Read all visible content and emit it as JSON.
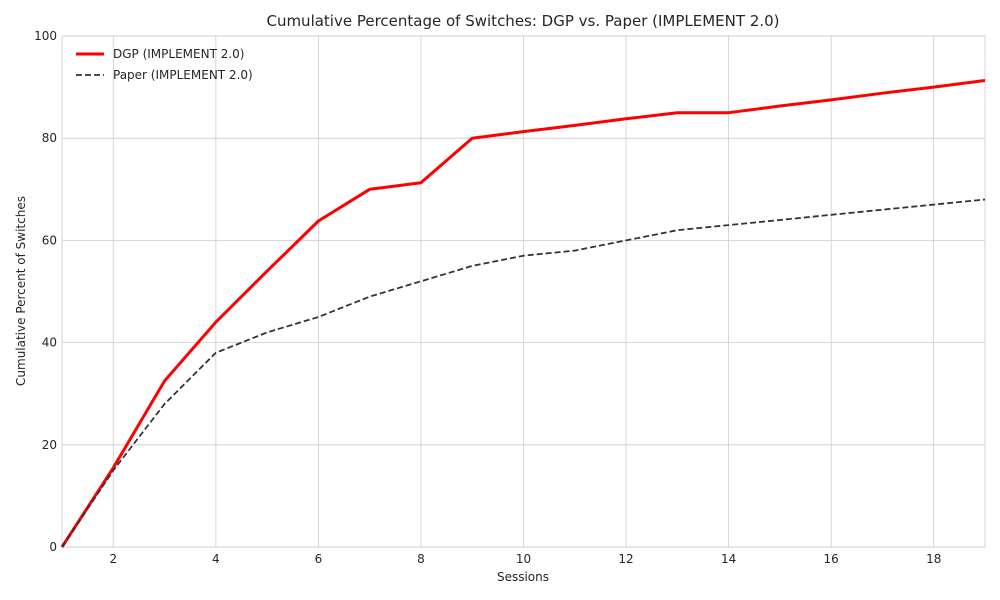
{
  "chart_data": {
    "type": "line",
    "title": "Cumulative Percentage of Switches: DGP vs. Paper (IMPLEMENT 2.0)",
    "xlabel": "Sessions",
    "ylabel": "Cumulative Percent of Switches",
    "xlim": [
      1,
      19
    ],
    "ylim": [
      0,
      100
    ],
    "xticks": [
      2,
      4,
      6,
      8,
      10,
      12,
      14,
      16,
      18
    ],
    "yticks": [
      0,
      20,
      40,
      60,
      80,
      100
    ],
    "grid": true,
    "legend_position": "top-left",
    "series": [
      {
        "name": "DGP (IMPLEMENT 2.0)",
        "color": "#ff0000",
        "style": "solid",
        "x": [
          1,
          2,
          3,
          4,
          5,
          6,
          7,
          8,
          9,
          10,
          11,
          12,
          13,
          14,
          15,
          16,
          17,
          18,
          19
        ],
        "y": [
          0,
          15.5,
          32.5,
          44,
          54,
          63.8,
          70,
          71.3,
          80,
          81.3,
          82.5,
          83.8,
          85,
          85,
          86.3,
          87.5,
          88.8,
          90,
          91.3
        ]
      },
      {
        "name": "Paper (IMPLEMENT 2.0)",
        "color": "#333333",
        "style": "dashed",
        "x": [
          1,
          2,
          3,
          4,
          5,
          6,
          7,
          8,
          9,
          10,
          11,
          12,
          13,
          14,
          15,
          16,
          17,
          18,
          19
        ],
        "y": [
          0,
          15,
          28,
          38,
          42,
          45,
          49,
          52,
          55,
          57,
          58,
          60,
          62,
          63,
          64,
          65,
          66,
          67,
          68
        ]
      }
    ]
  }
}
